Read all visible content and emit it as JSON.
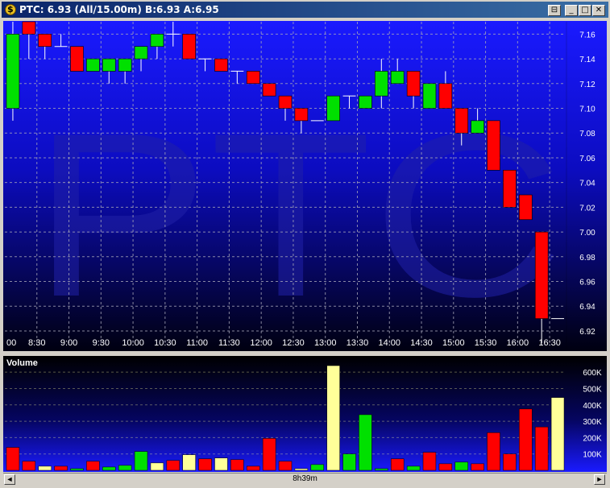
{
  "window": {
    "title": "PTC: 6.93 (All/15.00m)  B:6.93  A:6.95",
    "buttons": {
      "pin": "⊟",
      "minimize": "_",
      "maximize": "□",
      "close": "✕"
    }
  },
  "scrollbar": {
    "label": "8h39m",
    "left_arrow": "◄",
    "right_arrow": "►"
  },
  "chart_data": [
    {
      "type": "candlestick",
      "watermark": "PTC",
      "x_tick_labels": [
        "00",
        "8:30",
        "9:00",
        "9:30",
        "10:00",
        "10:30",
        "11:00",
        "11:30",
        "12:00",
        "12:30",
        "13:00",
        "13:30",
        "14:00",
        "14:30",
        "15:00",
        "15:30",
        "16:00",
        "16:30"
      ],
      "y_tick_labels": [
        "7.16",
        "7.14",
        "7.12",
        "7.10",
        "7.08",
        "7.06",
        "7.04",
        "7.02",
        "7.00",
        "6.98",
        "6.96",
        "6.94",
        "6.92"
      ],
      "ylim": [
        6.905,
        7.17
      ],
      "grid": true,
      "colors": {
        "up": "#00e000",
        "down": "#ff0000",
        "flat": "#ffffff",
        "grid": "#a8a8b8"
      },
      "candles": [
        {
          "time": "8:00",
          "open": 7.1,
          "high": 7.17,
          "low": 7.09,
          "close": 7.16
        },
        {
          "time": "8:15",
          "open": 7.17,
          "high": 7.17,
          "low": 7.14,
          "close": 7.16
        },
        {
          "time": "8:30",
          "open": 7.16,
          "high": 7.16,
          "low": 7.14,
          "close": 7.15
        },
        {
          "time": "8:45",
          "open": 7.15,
          "high": 7.16,
          "low": 7.15,
          "close": 7.15
        },
        {
          "time": "9:00",
          "open": 7.15,
          "high": 7.15,
          "low": 7.13,
          "close": 7.13
        },
        {
          "time": "9:15",
          "open": 7.13,
          "high": 7.14,
          "low": 7.13,
          "close": 7.14
        },
        {
          "time": "9:30",
          "open": 7.13,
          "high": 7.14,
          "low": 7.12,
          "close": 7.14
        },
        {
          "time": "9:45",
          "open": 7.13,
          "high": 7.14,
          "low": 7.12,
          "close": 7.14
        },
        {
          "time": "10:00",
          "open": 7.14,
          "high": 7.15,
          "low": 7.13,
          "close": 7.15
        },
        {
          "time": "10:15",
          "open": 7.15,
          "high": 7.16,
          "low": 7.14,
          "close": 7.16
        },
        {
          "time": "10:30",
          "open": 7.16,
          "high": 7.17,
          "low": 7.15,
          "close": 7.16
        },
        {
          "time": "10:45",
          "open": 7.16,
          "high": 7.16,
          "low": 7.14,
          "close": 7.14
        },
        {
          "time": "11:00",
          "open": 7.14,
          "high": 7.14,
          "low": 7.13,
          "close": 7.14
        },
        {
          "time": "11:15",
          "open": 7.14,
          "high": 7.14,
          "low": 7.13,
          "close": 7.13
        },
        {
          "time": "11:30",
          "open": 7.13,
          "high": 7.13,
          "low": 7.12,
          "close": 7.13
        },
        {
          "time": "11:45",
          "open": 7.13,
          "high": 7.13,
          "low": 7.12,
          "close": 7.12
        },
        {
          "time": "12:00",
          "open": 7.12,
          "high": 7.12,
          "low": 7.11,
          "close": 7.11
        },
        {
          "time": "12:15",
          "open": 7.11,
          "high": 7.11,
          "low": 7.09,
          "close": 7.1
        },
        {
          "time": "12:30",
          "open": 7.1,
          "high": 7.1,
          "low": 7.08,
          "close": 7.09
        },
        {
          "time": "12:45",
          "open": 7.09,
          "high": 7.09,
          "low": 7.09,
          "close": 7.09
        },
        {
          "time": "13:00",
          "open": 7.09,
          "high": 7.11,
          "low": 7.09,
          "close": 7.11
        },
        {
          "time": "13:15",
          "open": 7.11,
          "high": 7.11,
          "low": 7.1,
          "close": 7.11
        },
        {
          "time": "13:30",
          "open": 7.1,
          "high": 7.11,
          "low": 7.1,
          "close": 7.11
        },
        {
          "time": "13:45",
          "open": 7.11,
          "high": 7.14,
          "low": 7.1,
          "close": 7.13
        },
        {
          "time": "14:00",
          "open": 7.12,
          "high": 7.14,
          "low": 7.12,
          "close": 7.13
        },
        {
          "time": "14:15",
          "open": 7.13,
          "high": 7.13,
          "low": 7.1,
          "close": 7.11
        },
        {
          "time": "14:30",
          "open": 7.1,
          "high": 7.12,
          "low": 7.1,
          "close": 7.12
        },
        {
          "time": "14:45",
          "open": 7.12,
          "high": 7.13,
          "low": 7.1,
          "close": 7.1
        },
        {
          "time": "15:00",
          "open": 7.1,
          "high": 7.1,
          "low": 7.07,
          "close": 7.08
        },
        {
          "time": "15:15",
          "open": 7.08,
          "high": 7.1,
          "low": 7.08,
          "close": 7.09
        },
        {
          "time": "15:30",
          "open": 7.09,
          "high": 7.09,
          "low": 7.05,
          "close": 7.05
        },
        {
          "time": "15:45",
          "open": 7.05,
          "high": 7.05,
          "low": 7.02,
          "close": 7.02
        },
        {
          "time": "16:00",
          "open": 7.03,
          "high": 7.03,
          "low": 7.01,
          "close": 7.01
        },
        {
          "time": "16:15",
          "open": 7.0,
          "high": 7.0,
          "low": 6.91,
          "close": 6.93
        },
        {
          "time": "16:30",
          "open": 6.93,
          "high": 6.93,
          "low": 6.93,
          "close": 6.93
        }
      ]
    },
    {
      "type": "bar",
      "title": "Volume",
      "y_tick_labels": [
        "600K",
        "500K",
        "400K",
        "300K",
        "200K",
        "100K"
      ],
      "ylim": [
        0,
        650000
      ],
      "colors": {
        "up": "#00e000",
        "down": "#ff0000",
        "flat": "#ffff99"
      },
      "values": [
        140000,
        55000,
        25000,
        25000,
        10000,
        55000,
        20000,
        30000,
        115000,
        45000,
        60000,
        95000,
        70000,
        75000,
        65000,
        25000,
        195000,
        55000,
        10000,
        35000,
        640000,
        100000,
        340000,
        10000,
        70000,
        25000,
        110000,
        40000,
        50000,
        40000,
        230000,
        100000,
        375000,
        265000,
        445000
      ],
      "bar_directions": [
        "down",
        "down",
        "flat",
        "down",
        "up",
        "down",
        "up",
        "up",
        "up",
        "flat",
        "down",
        "flat",
        "down",
        "flat",
        "down",
        "down",
        "down",
        "down",
        "flat",
        "up",
        "flat",
        "up",
        "up",
        "up",
        "down",
        "up",
        "down",
        "down",
        "up",
        "down",
        "down",
        "down",
        "down",
        "down",
        "flat"
      ]
    }
  ]
}
